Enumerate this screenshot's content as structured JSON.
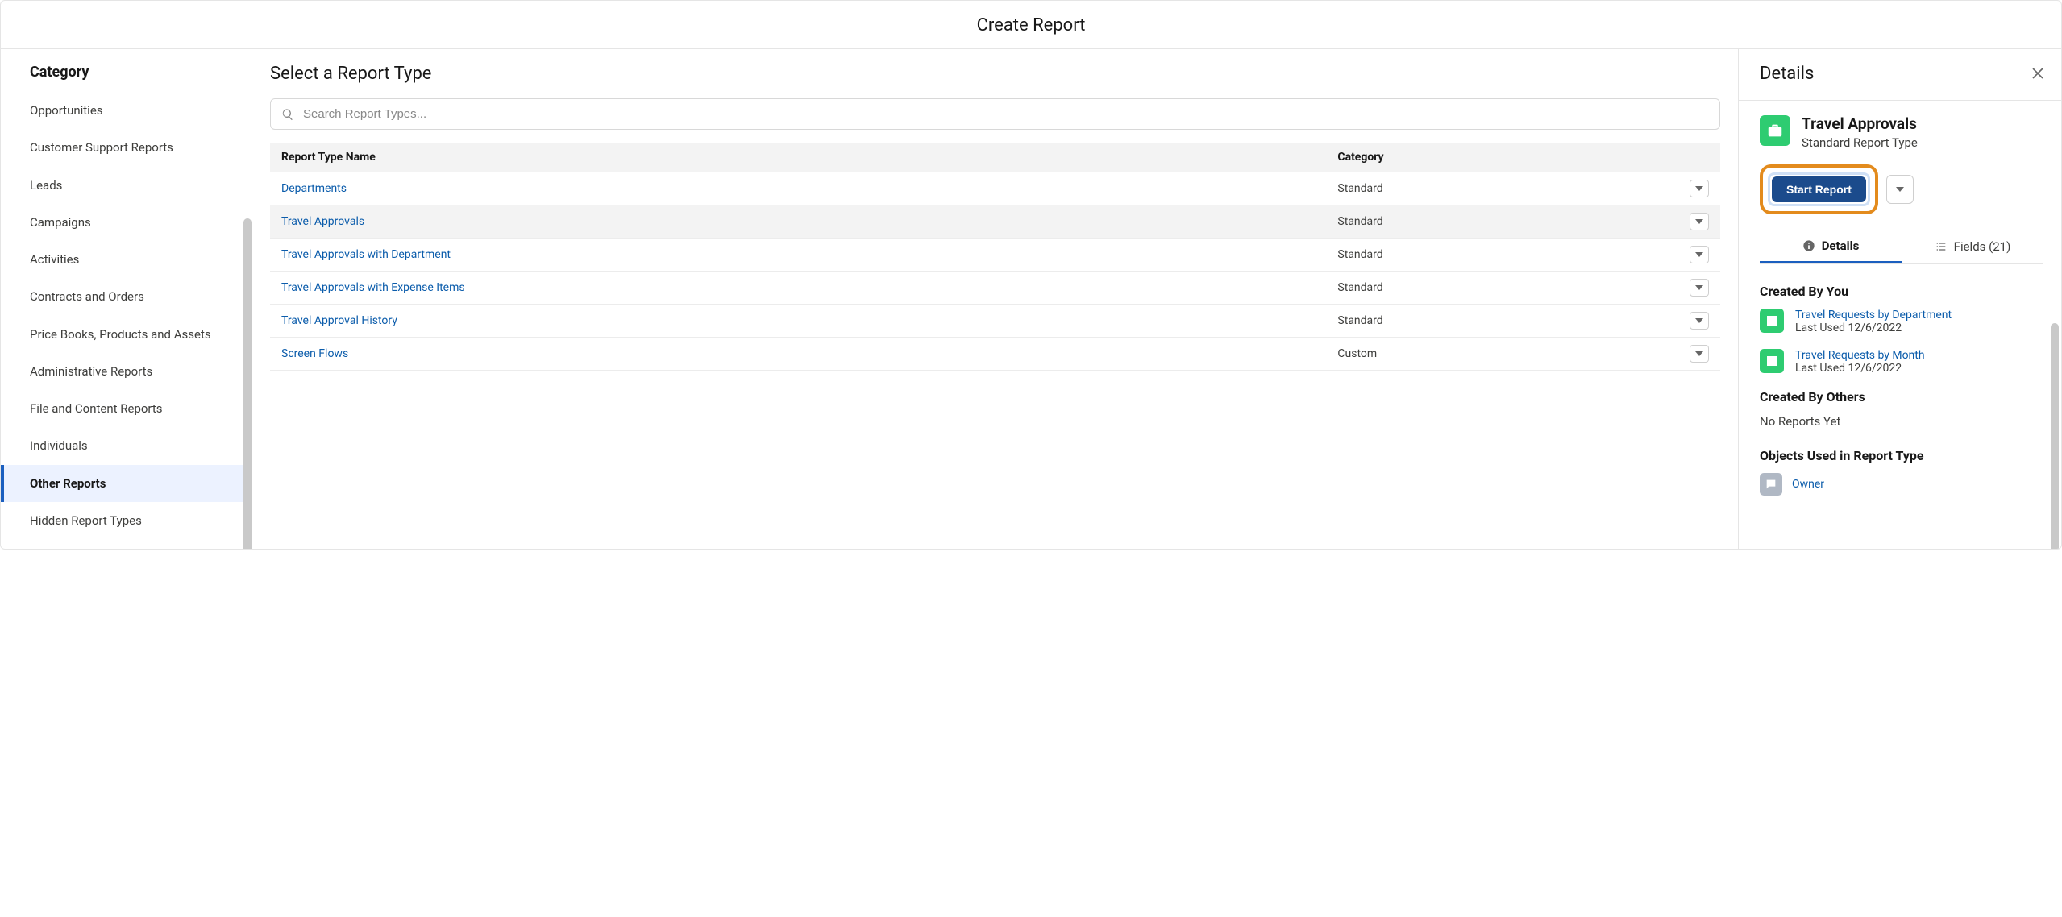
{
  "header": {
    "title": "Create Report"
  },
  "sidebar": {
    "title": "Category",
    "items": [
      {
        "label": "Opportunities",
        "selected": false
      },
      {
        "label": "Customer Support Reports",
        "selected": false
      },
      {
        "label": "Leads",
        "selected": false
      },
      {
        "label": "Campaigns",
        "selected": false
      },
      {
        "label": "Activities",
        "selected": false
      },
      {
        "label": "Contracts and Orders",
        "selected": false
      },
      {
        "label": "Price Books, Products and Assets",
        "selected": false
      },
      {
        "label": "Administrative Reports",
        "selected": false
      },
      {
        "label": "File and Content Reports",
        "selected": false
      },
      {
        "label": "Individuals",
        "selected": false
      },
      {
        "label": "Other Reports",
        "selected": true
      },
      {
        "label": "Hidden Report Types",
        "selected": false
      }
    ]
  },
  "main": {
    "title": "Select a Report Type",
    "search_placeholder": "Search Report Types...",
    "columns": {
      "name": "Report Type Name",
      "category": "Category"
    },
    "rows": [
      {
        "name": "Departments",
        "category": "Standard",
        "selected": false
      },
      {
        "name": "Travel Approvals",
        "category": "Standard",
        "selected": true
      },
      {
        "name": "Travel Approvals with Department",
        "category": "Standard",
        "selected": false
      },
      {
        "name": "Travel Approvals with Expense Items",
        "category": "Standard",
        "selected": false
      },
      {
        "name": "Travel Approval History",
        "category": "Standard",
        "selected": false
      },
      {
        "name": "Screen Flows",
        "category": "Custom",
        "selected": false
      }
    ]
  },
  "details": {
    "title": "Details",
    "report_type": {
      "name": "Travel Approvals",
      "subtitle": "Standard Report Type",
      "icon_color": "#2ecc71"
    },
    "start_button": "Start Report",
    "tabs": {
      "details": "Details",
      "fields": "Fields (21)",
      "active": "details"
    },
    "sections": {
      "created_by_you": {
        "title": "Created By You",
        "items": [
          {
            "name": "Travel Requests by Department",
            "last_used": "Last Used 12/6/2022",
            "icon_color": "#2ecc71"
          },
          {
            "name": "Travel Requests by Month",
            "last_used": "Last Used 12/6/2022",
            "icon_color": "#2ecc71"
          }
        ]
      },
      "created_by_others": {
        "title": "Created By Others",
        "empty_text": "No Reports Yet"
      },
      "objects_used": {
        "title": "Objects Used in Report Type",
        "items": [
          {
            "name": "Owner",
            "icon_color": "#b0b8c4"
          }
        ]
      }
    }
  },
  "colors": {
    "link": "#0b5cab",
    "accent": "#1b5fbf",
    "highlight_ring": "#e38b1d",
    "button_primary": "#1b4b8c"
  }
}
